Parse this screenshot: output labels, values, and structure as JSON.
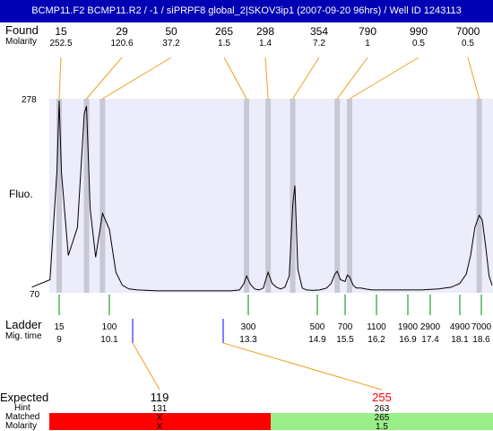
{
  "header": {
    "title": "BCMP11.F2  BCMP11.R2 / -1  / siPRPF8 global_2|SKOV3ip1 (2007-09-20 96hrs) / Well ID 1243113"
  },
  "labels": {
    "found": "Found",
    "molarity": "Molarity",
    "fluo": "Fluo.",
    "ladder": "Ladder",
    "mig_time": "Mig. time",
    "expected": "Expected",
    "hint": "Hint",
    "matched": "Matched",
    "molarity_bottom": "Molarity"
  },
  "colors": {
    "title_bg": "#0000b4",
    "plot_bg": "#ececfa",
    "peak_band": "#c8c8d4",
    "callout_line": "#f0a020",
    "expected_marker": "#0000ff",
    "expected_highlight": "#ff0000",
    "not_matched": "#ff0000",
    "matched": "#99ee88"
  },
  "chart_data": {
    "type": "line",
    "ylabel": "Fluo.",
    "ylim": [
      70,
      278
    ],
    "y_ticks": [
      "278",
      "70"
    ],
    "found_peaks": [
      {
        "size": "15",
        "molarity": "252.5"
      },
      {
        "size": "29",
        "molarity": "120.6"
      },
      {
        "size": "50",
        "molarity": "37.2"
      },
      {
        "size": "265",
        "molarity": "1.5"
      },
      {
        "size": "298",
        "molarity": "1.4"
      },
      {
        "size": "354",
        "molarity": "7.2"
      },
      {
        "size": "790",
        "molarity": "1"
      },
      {
        "size": "990",
        "molarity": "0.5"
      },
      {
        "size": "7000",
        "molarity": "0.5"
      }
    ],
    "ladder": [
      {
        "size": "15",
        "mig_time": "9"
      },
      {
        "size": "100",
        "mig_time": "10.1"
      },
      {
        "size": "300",
        "mig_time": "13.3"
      },
      {
        "size": "500",
        "mig_time": "14.9"
      },
      {
        "size": "700",
        "mig_time": "15.5"
      },
      {
        "size": "1100",
        "mig_time": "16.2"
      },
      {
        "size": "1900",
        "mig_time": "16.9"
      },
      {
        "size": "2900",
        "mig_time": "17.4"
      },
      {
        "size": "4900",
        "mig_time": "18.1"
      },
      {
        "size": "7000",
        "mig_time": "18.6"
      }
    ],
    "expected": [
      {
        "size": "119",
        "hint": "131",
        "matched": "X",
        "molarity": "X",
        "status": "not-matched"
      },
      {
        "size": "255",
        "hint": "263",
        "matched": "265",
        "molarity": "1.5",
        "status": "matched"
      }
    ],
    "series": [
      {
        "x": [
          8.4,
          8.8,
          8.95,
          9.0,
          9.05,
          9.2,
          9.4,
          9.55,
          9.6,
          9.68,
          9.8,
          9.95,
          10.1,
          10.25,
          10.4,
          10.55,
          10.75,
          11.2,
          11.8,
          12.4,
          12.9,
          13.1,
          13.2,
          13.26,
          13.35,
          13.45,
          13.55,
          13.65,
          13.7,
          13.76,
          13.85,
          13.95,
          14.05,
          14.15,
          14.25,
          14.33,
          14.38,
          14.45,
          14.55,
          14.65,
          14.8,
          14.95,
          15.1,
          15.2,
          15.28,
          15.33,
          15.4,
          15.5,
          15.55,
          15.6,
          15.68,
          15.75,
          15.85,
          15.95,
          16.1,
          16.4,
          16.8,
          17.2,
          17.6,
          17.9,
          18.1,
          18.25,
          18.35,
          18.45,
          18.55,
          18.62,
          18.7,
          18.78,
          18.85
        ],
        "y": [
          76,
          84,
          200,
          276,
          200,
          110,
          140,
          262,
          270,
          160,
          108,
          155,
          138,
          92,
          78,
          74,
          73,
          72,
          72,
          72,
          72,
          73,
          80,
          88,
          79,
          74,
          73,
          75,
          83,
          92,
          80,
          76,
          74,
          76,
          88,
          164,
          185,
          95,
          75,
          73,
          72.5,
          73,
          75,
          80,
          90,
          93,
          84,
          82,
          89,
          87,
          78,
          75,
          75,
          74,
          73,
          73,
          73,
          73,
          74,
          76,
          80,
          90,
          110,
          140,
          153,
          148,
          120,
          88,
          78
        ]
      }
    ]
  }
}
